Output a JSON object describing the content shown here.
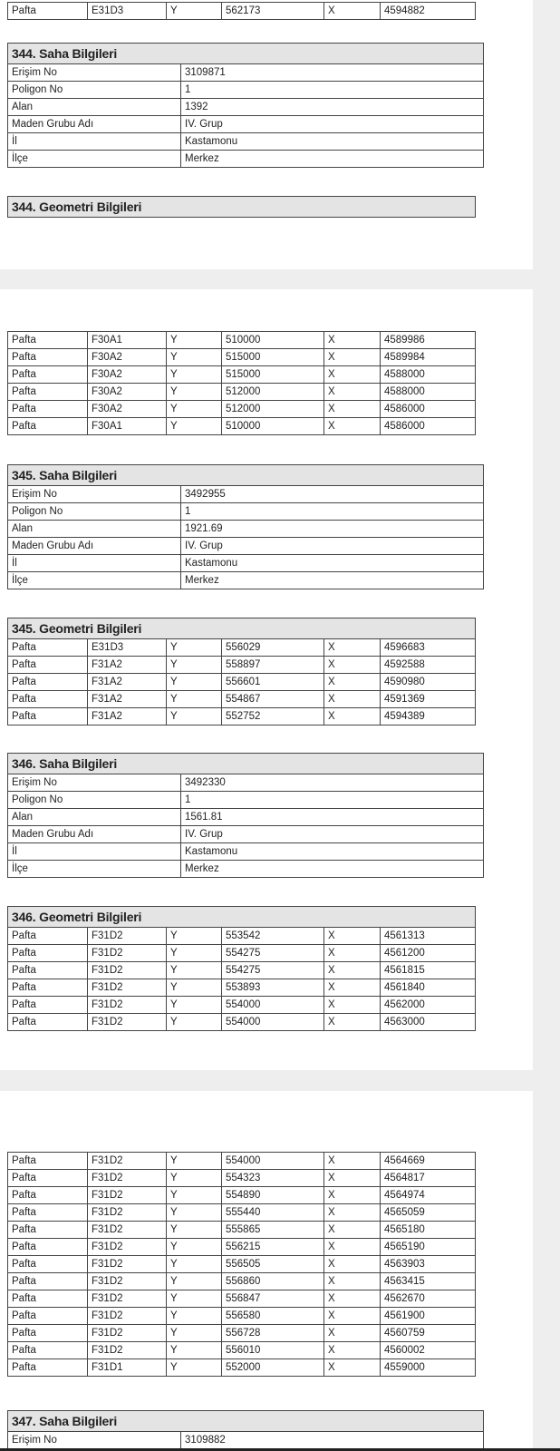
{
  "labels": {
    "pafta": "Pafta",
    "y": "Y",
    "x": "X"
  },
  "blocks": [
    {
      "type": "geo",
      "top": 0,
      "title": "",
      "rows": [
        [
          "E31D3",
          "562173",
          "4594882"
        ]
      ]
    },
    {
      "type": "saha",
      "title": "344. Saha Bilgileri",
      "rows": [
        [
          "Erişim No",
          "3109871"
        ],
        [
          "Poligon No",
          "1"
        ],
        [
          "Alan",
          "1392"
        ],
        [
          "Maden Grubu Adı",
          "IV. Grup"
        ],
        [
          "İl",
          "Kastamonu"
        ],
        [
          "İlçe",
          "Merkez"
        ]
      ]
    },
    {
      "type": "geo",
      "title": "344. Geometri Bilgileri",
      "rows": []
    },
    {
      "type": "geo",
      "title": "",
      "rows": [
        [
          "F30A1",
          "510000",
          "4589986"
        ],
        [
          "F30A2",
          "515000",
          "4589984"
        ],
        [
          "F30A2",
          "515000",
          "4588000"
        ],
        [
          "F30A2",
          "512000",
          "4588000"
        ],
        [
          "F30A2",
          "512000",
          "4586000"
        ],
        [
          "F30A1",
          "510000",
          "4586000"
        ]
      ]
    },
    {
      "type": "saha",
      "title": "345. Saha Bilgileri",
      "rows": [
        [
          "Erişim No",
          "3492955"
        ],
        [
          "Poligon No",
          "1"
        ],
        [
          "Alan",
          "1921.69"
        ],
        [
          "Maden Grubu Adı",
          "IV. Grup"
        ],
        [
          "İl",
          "Kastamonu"
        ],
        [
          "İlçe",
          "Merkez"
        ]
      ]
    },
    {
      "type": "geo",
      "title": "345. Geometri Bilgileri",
      "rows": [
        [
          "E31D3",
          "556029",
          "4596683"
        ],
        [
          "F31A2",
          "558897",
          "4592588"
        ],
        [
          "F31A2",
          "556601",
          "4590980"
        ],
        [
          "F31A2",
          "554867",
          "4591369"
        ],
        [
          "F31A2",
          "552752",
          "4594389"
        ]
      ]
    },
    {
      "type": "saha",
      "title": "346. Saha Bilgileri",
      "rows": [
        [
          "Erişim No",
          "3492330"
        ],
        [
          "Poligon No",
          "1"
        ],
        [
          "Alan",
          "1561.81"
        ],
        [
          "Maden Grubu Adı",
          "IV. Grup"
        ],
        [
          "İl",
          "Kastamonu"
        ],
        [
          "İlçe",
          "Merkez"
        ]
      ]
    },
    {
      "type": "geo",
      "title": "346. Geometri Bilgileri",
      "rows": [
        [
          "F31D2",
          "553542",
          "4561313"
        ],
        [
          "F31D2",
          "554275",
          "4561200"
        ],
        [
          "F31D2",
          "554275",
          "4561815"
        ],
        [
          "F31D2",
          "553893",
          "4561840"
        ],
        [
          "F31D2",
          "554000",
          "4562000"
        ],
        [
          "F31D2",
          "554000",
          "4563000"
        ]
      ]
    },
    {
      "type": "geo",
      "title": "",
      "rows": [
        [
          "F31D2",
          "554000",
          "4564669"
        ],
        [
          "F31D2",
          "554323",
          "4564817"
        ],
        [
          "F31D2",
          "554890",
          "4564974"
        ],
        [
          "F31D2",
          "555440",
          "4565059"
        ],
        [
          "F31D2",
          "555865",
          "4565180"
        ],
        [
          "F31D2",
          "556215",
          "4565190"
        ],
        [
          "F31D2",
          "556505",
          "4563903"
        ],
        [
          "F31D2",
          "556860",
          "4563415"
        ],
        [
          "F31D2",
          "556847",
          "4562670"
        ],
        [
          "F31D2",
          "556580",
          "4561900"
        ],
        [
          "F31D2",
          "556728",
          "4560759"
        ],
        [
          "F31D2",
          "556010",
          "4560002"
        ],
        [
          "F31D1",
          "552000",
          "4559000"
        ]
      ]
    },
    {
      "type": "saha",
      "title": "347. Saha Bilgileri",
      "rows": [
        [
          "Erişim No",
          "3109882"
        ]
      ]
    }
  ]
}
